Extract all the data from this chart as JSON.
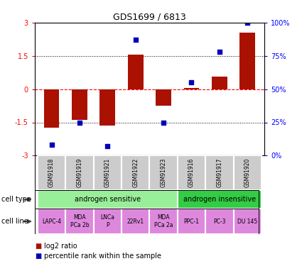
{
  "title": "GDS1699 / 6813",
  "samples": [
    "GSM91918",
    "GSM91919",
    "GSM91921",
    "GSM91922",
    "GSM91923",
    "GSM91916",
    "GSM91917",
    "GSM91920"
  ],
  "log2_ratio": [
    -1.75,
    -1.4,
    -1.65,
    1.55,
    -0.75,
    0.05,
    0.55,
    2.55
  ],
  "percentile_rank": [
    8,
    25,
    7,
    87,
    25,
    55,
    78,
    100
  ],
  "ylim_left": [
    -3,
    3
  ],
  "bar_color": "#aa1100",
  "dot_color": "#0000bb",
  "cell_type_groups": [
    {
      "label": "androgen sensitive",
      "start": 0,
      "end": 4,
      "color": "#99ee99"
    },
    {
      "label": "androgen insensitive",
      "start": 5,
      "end": 7,
      "color": "#33cc44"
    }
  ],
  "cell_lines": [
    {
      "label": "LAPC-4",
      "sample_idx": 0
    },
    {
      "label": "MDA\nPCa 2b",
      "sample_idx": 1
    },
    {
      "label": "LNCa\nP",
      "sample_idx": 2
    },
    {
      "label": "22Rv1",
      "sample_idx": 3
    },
    {
      "label": "MDA\nPCa 2a",
      "sample_idx": 4
    },
    {
      "label": "PPC-1",
      "sample_idx": 5
    },
    {
      "label": "PC-3",
      "sample_idx": 6
    },
    {
      "label": "DU 145",
      "sample_idx": 7
    }
  ],
  "cell_line_color": "#dd88dd",
  "legend_items": [
    {
      "label": "log2 ratio",
      "color": "#aa1100"
    },
    {
      "label": "percentile rank within the sample",
      "color": "#0000bb"
    }
  ],
  "background_color": "#ffffff",
  "sample_box_color": "#cccccc",
  "bar_width": 0.55
}
